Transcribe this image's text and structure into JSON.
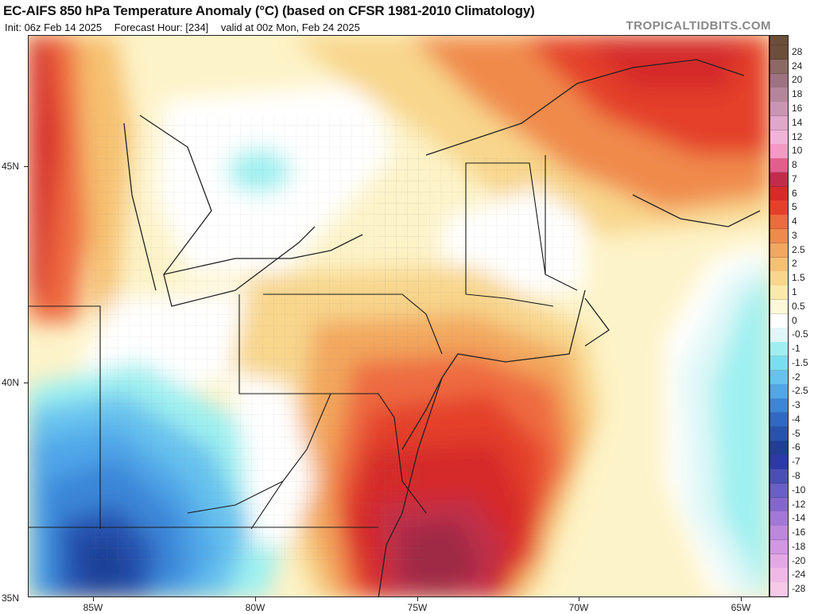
{
  "header": {
    "title": "EC-AIFS 850 hPa Temperature Anomaly (°C) (based on CFSR 1981-2010 Climatology)",
    "init": "Init: 06z Feb 14 2025",
    "forecast_hour": "Forecast Hour: [234]",
    "valid": "valid at 00z Mon, Feb 24 2025",
    "brand": "TROPICALTIDBITS.COM"
  },
  "axes": {
    "lat_labels": [
      "45N",
      "40N",
      "35N"
    ],
    "lon_labels": [
      "85W",
      "80W",
      "75W",
      "70W",
      "65W"
    ]
  },
  "colorbar": {
    "levels": [
      "28",
      "24",
      "20",
      "18",
      "16",
      "14",
      "12",
      "10",
      "8",
      "7",
      "6",
      "5",
      "4",
      "3",
      "2.5",
      "2",
      "1.5",
      "1",
      "0.5",
      "0",
      "-0.5",
      "-1",
      "-1.5",
      "-2",
      "-2.5",
      "-3",
      "-4",
      "-5",
      "-6",
      "-7",
      "-8",
      "-10",
      "-12",
      "-14",
      "-16",
      "-18",
      "-20",
      "-24",
      "-28"
    ],
    "colors": [
      "#6b4f3a",
      "#8a6a62",
      "#9d7380",
      "#b3869a",
      "#c996b2",
      "#dea8c8",
      "#f0b5d6",
      "#f29ac2",
      "#e0608a",
      "#c02d49",
      "#d52b2b",
      "#e4412c",
      "#ee6a3f",
      "#f08a4c",
      "#f3a75d",
      "#f6c070",
      "#f8d68c",
      "#faeaaa",
      "#fdf8d8",
      "#ffffff",
      "#dff7f7",
      "#9ef0f0",
      "#78dff0",
      "#67c2ee",
      "#4fa6e8",
      "#3b86d8",
      "#2f69c6",
      "#2753b0",
      "#1f3f96",
      "#2b3aa8",
      "#4a4fb8",
      "#6a5ec8",
      "#8566cf",
      "#a278d6",
      "#bb88dc",
      "#cf98e0",
      "#e2a8e4",
      "#f0b8e6",
      "#f7c8e8"
    ]
  },
  "map": {
    "field": "850 hPa temperature anomaly",
    "feature_colors": {
      "warm_max": "#9e2a45",
      "warm_core": "#d52b2b",
      "neutral": "#ffffff",
      "cold_core": "#2753b0",
      "cool_fringe": "#9ef0f0"
    }
  }
}
